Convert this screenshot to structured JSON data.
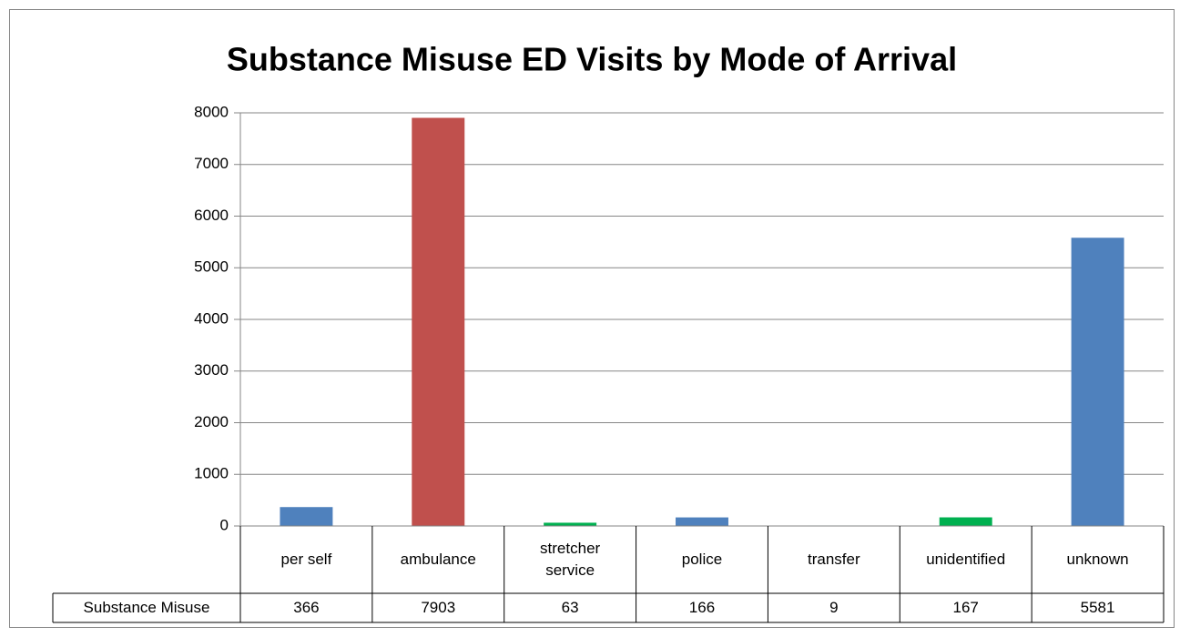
{
  "chart_data": {
    "type": "bar",
    "title": "Substance Misuse ED Visits by Mode of Arrival",
    "categories": [
      "per self",
      "ambulance",
      "stretcher service",
      "police",
      "transfer",
      "unidentified",
      "unknown"
    ],
    "series": [
      {
        "name": "Substance Misuse",
        "colors": [
          "#4f81bd",
          "#c0504d",
          "#00b050",
          "#4f81bd",
          "#4f81bd",
          "#00b050",
          "#4f81bd"
        ],
        "values": [
          366,
          7903,
          63,
          166,
          9,
          167,
          5581
        ]
      }
    ],
    "ylim": [
      0,
      8000
    ],
    "yticks": [
      0,
      1000,
      2000,
      3000,
      4000,
      5000,
      6000,
      7000,
      8000
    ],
    "grid": true,
    "data_table": true
  }
}
